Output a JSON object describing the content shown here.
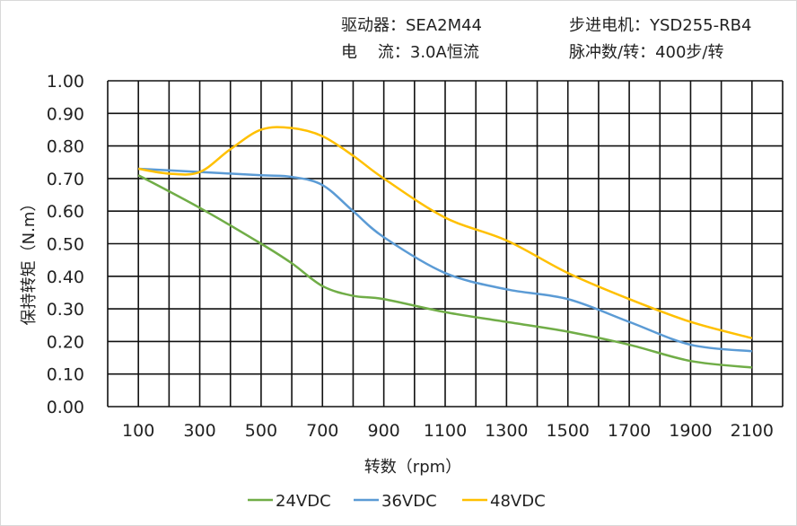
{
  "header": {
    "driver": "驱动器：SEA2M44",
    "motor": "步进电机：YSD255-RB4",
    "current": "电    流：3.0A恒流",
    "pulses": "脉冲数/转：400步/转"
  },
  "chart_data": {
    "type": "line",
    "title": "",
    "xlabel": "转数（rpm）",
    "ylabel": "保持转矩（N.m）",
    "xlim": [
      0,
      2200
    ],
    "ylim": [
      0,
      1.0
    ],
    "x_ticks": [
      100,
      300,
      500,
      700,
      900,
      1100,
      1300,
      1500,
      1700,
      1900,
      2100
    ],
    "x_grid_step": 100,
    "y_ticks": [
      "0.00",
      "0.10",
      "0.20",
      "0.30",
      "0.40",
      "0.50",
      "0.60",
      "0.70",
      "0.80",
      "0.90",
      "1.00"
    ],
    "grid": true,
    "legend_position": "bottom",
    "series": [
      {
        "name": "24VDC",
        "color": "#70ad47",
        "x": [
          100,
          300,
          500,
          600,
          700,
          800,
          900,
          1100,
          1300,
          1500,
          1700,
          1900,
          2100
        ],
        "y": [
          0.71,
          0.61,
          0.5,
          0.44,
          0.37,
          0.34,
          0.33,
          0.29,
          0.26,
          0.23,
          0.19,
          0.14,
          0.12
        ]
      },
      {
        "name": "36VDC",
        "color": "#5b9bd5",
        "x": [
          100,
          300,
          500,
          600,
          700,
          800,
          900,
          1100,
          1300,
          1500,
          1700,
          1900,
          2100
        ],
        "y": [
          0.73,
          0.72,
          0.71,
          0.705,
          0.68,
          0.6,
          0.52,
          0.41,
          0.36,
          0.33,
          0.26,
          0.19,
          0.17
        ]
      },
      {
        "name": "48VDC",
        "color": "#ffc000",
        "x": [
          100,
          200,
          300,
          400,
          500,
          600,
          700,
          800,
          900,
          1100,
          1300,
          1500,
          1700,
          1900,
          2100
        ],
        "y": [
          0.73,
          0.715,
          0.72,
          0.79,
          0.85,
          0.855,
          0.83,
          0.77,
          0.7,
          0.58,
          0.51,
          0.41,
          0.33,
          0.26,
          0.21
        ]
      }
    ]
  }
}
